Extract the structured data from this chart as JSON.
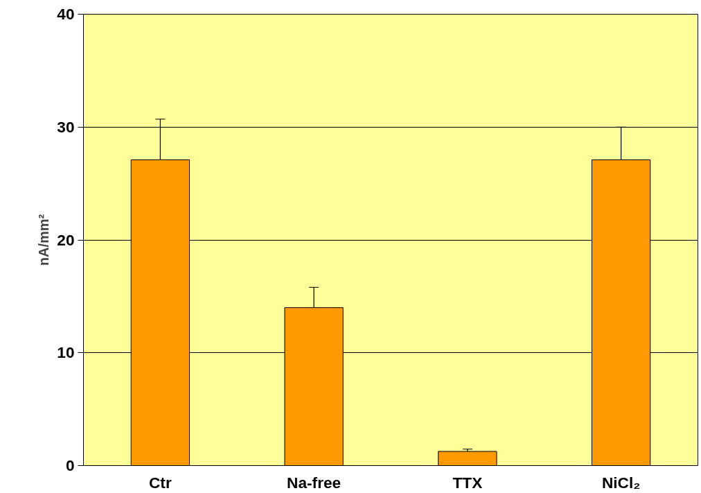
{
  "chart_data": {
    "type": "bar",
    "ylabel": "nA/mm²",
    "categories": [
      "Ctr",
      "Na-free",
      "TTX",
      "NiCl₂"
    ],
    "values": [
      27.1,
      14.0,
      1.26,
      27.1
    ],
    "errors": [
      [
        27.1,
        30.7
      ],
      [
        14.0,
        15.8
      ],
      [
        1.26,
        1.46
      ],
      [
        27.1,
        30.0
      ]
    ],
    "color": "#ff9900",
    "ylim": [
      0,
      40
    ],
    "yticks": [
      0,
      10,
      20,
      30,
      40
    ],
    "grid": "y"
  }
}
